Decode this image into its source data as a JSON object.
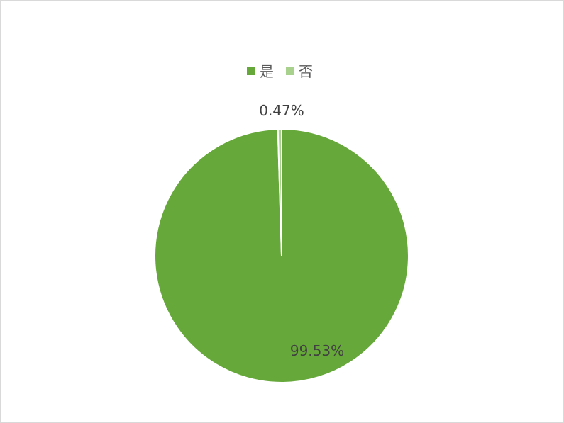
{
  "chart_data": {
    "type": "pie",
    "title": "",
    "legend_position": "top",
    "categories": [
      "是",
      "否"
    ],
    "values": [
      99.53,
      0.47
    ],
    "data_labels": [
      "99.53%",
      "0.47%"
    ],
    "colors": [
      "#67a83b",
      "#a9d18e"
    ],
    "start_angle_deg": 0,
    "direction": "clockwise"
  }
}
